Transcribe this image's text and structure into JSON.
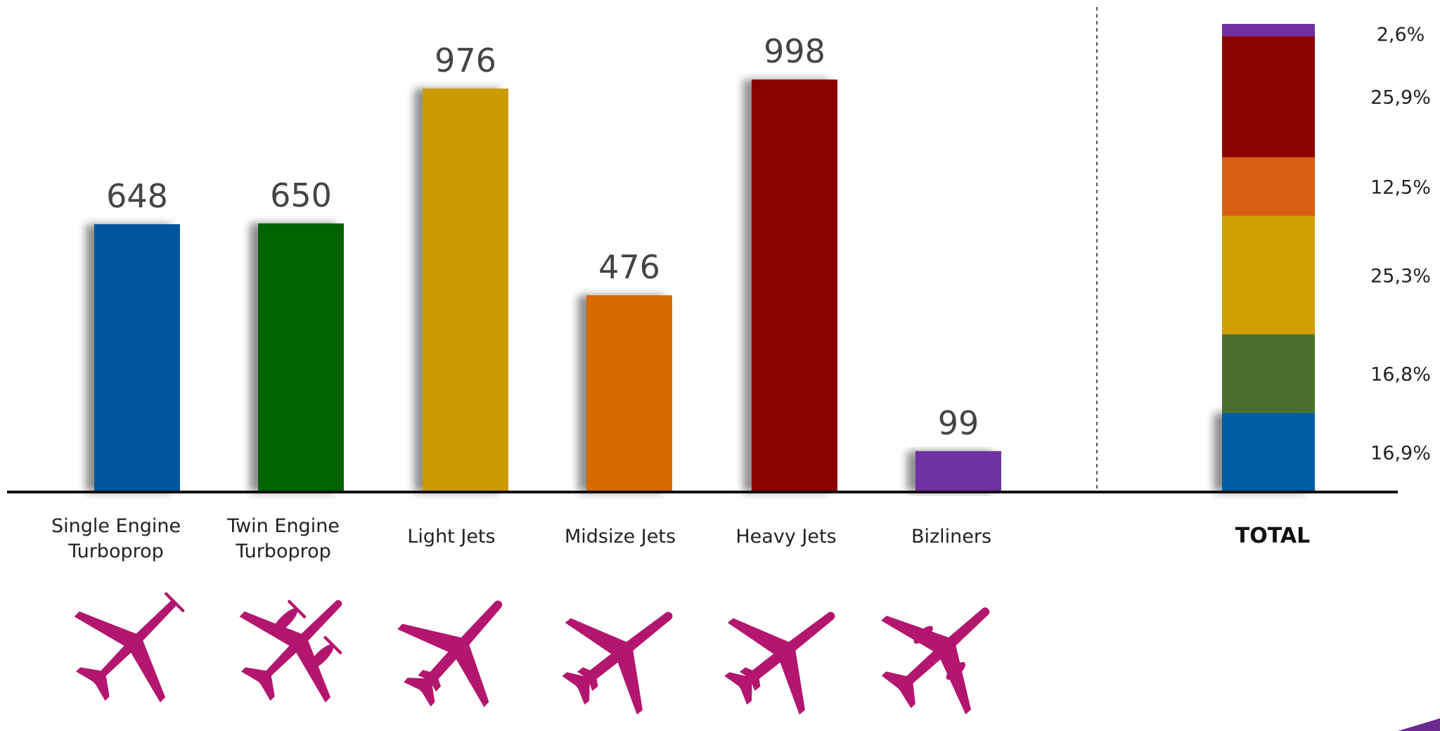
{
  "chart_data": {
    "type": "bar",
    "title": "",
    "xlabel": "",
    "ylabel": "",
    "ylim": [
      0,
      1000
    ],
    "grid": false,
    "categories": [
      {
        "lines": [
          "Single Engine",
          "Turboprop"
        ],
        "value": 648,
        "display": "648",
        "color": "#00579d",
        "icon": "single-engine-turboprop-plane-icon"
      },
      {
        "lines": [
          "Twin Engine",
          "Turboprop"
        ],
        "value": 650,
        "display": "650",
        "color": "#006400",
        "icon": "twin-engine-turboprop-plane-icon"
      },
      {
        "lines": [
          "Light Jets"
        ],
        "value": 976,
        "display": "976",
        "color": "#cc9900",
        "icon": "light-jet-plane-icon"
      },
      {
        "lines": [
          "Midsize Jets"
        ],
        "value": 476,
        "display": "476",
        "color": "#d46a00",
        "icon": "midsize-jet-plane-icon"
      },
      {
        "lines": [
          "Heavy Jets"
        ],
        "value": 998,
        "display": "998",
        "color": "#8b0000",
        "icon": "heavy-jet-plane-icon"
      },
      {
        "lines": [
          "Bizliners"
        ],
        "value": 99,
        "display": "99",
        "color": "#7030a0",
        "icon": "bizliner-plane-icon"
      }
    ],
    "total": {
      "label": "TOTAL",
      "segments": [
        {
          "pct": 16.9,
          "label": "16,9%",
          "color": "#005ba0"
        },
        {
          "pct": 16.8,
          "label": "16,8%",
          "color": "#4a6f2f"
        },
        {
          "pct": 25.3,
          "label": "25,3%",
          "color": "#cfa000"
        },
        {
          "pct": 12.5,
          "label": "12,5%",
          "color": "#d55f12"
        },
        {
          "pct": 25.9,
          "label": "25,9%",
          "color": "#8b0000"
        },
        {
          "pct": 2.6,
          "label": "2,6%",
          "color": "#7030a0"
        }
      ]
    },
    "colors": {
      "axis": "#111111",
      "divider": "#555555",
      "icon": "#b3166f",
      "corner_accent": "#6a2a90"
    }
  }
}
